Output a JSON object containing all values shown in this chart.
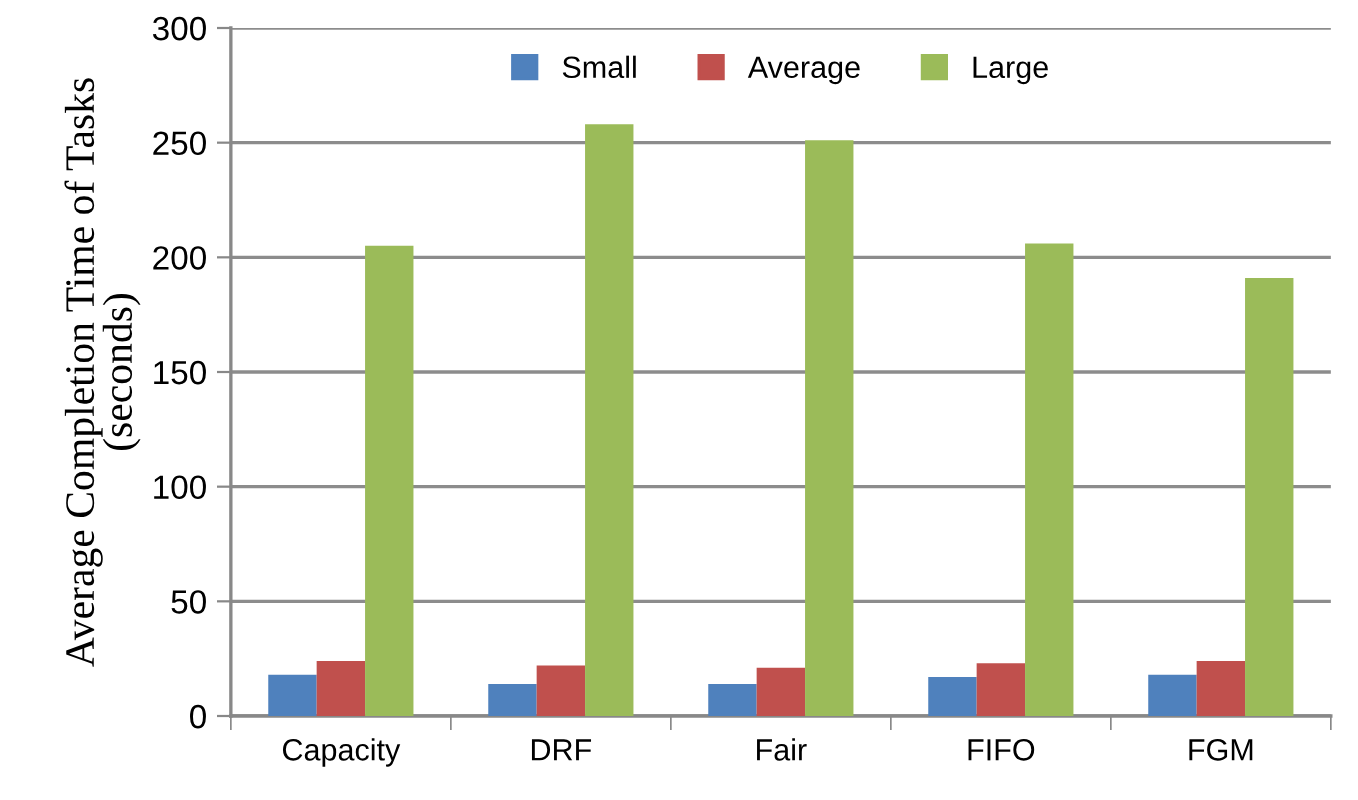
{
  "chart_data": {
    "type": "bar",
    "ylabel": "Average Completion Time of Tasks\n(seconds)",
    "categories": [
      "Capacity",
      "DRF",
      "Fair",
      "FIFO",
      "FGM"
    ],
    "series": [
      {
        "name": "Small",
        "color": "#4f81bd",
        "values": [
          18,
          14,
          14,
          17,
          18
        ]
      },
      {
        "name": "Average",
        "color": "#c0504d",
        "values": [
          24,
          22,
          21,
          23,
          24
        ]
      },
      {
        "name": "Large",
        "color": "#9bbb59",
        "values": [
          205,
          258,
          251,
          206,
          191
        ]
      }
    ],
    "ylim": [
      0,
      300
    ],
    "yticks": [
      0,
      50,
      100,
      150,
      200,
      250,
      300
    ],
    "grid": "y",
    "legend": "top"
  }
}
